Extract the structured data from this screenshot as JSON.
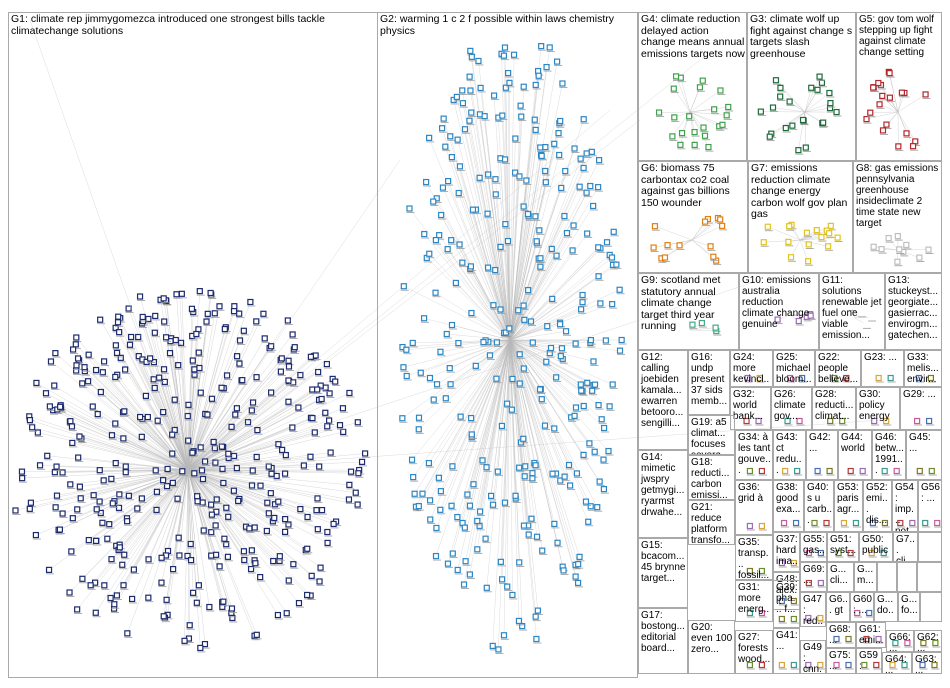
{
  "colors": {
    "G1": "#1c2a6e",
    "G2": "#2a86c4",
    "G3": "#1d6b3a",
    "G4": "#3ea24a",
    "G5": "#b3262d",
    "G6": "#e07f14",
    "G7": "#e2c41e",
    "G8": "#bfbfbf",
    "G9": "#44aa88",
    "G10": "#9b6bb3",
    "edge": "#b8b8b8",
    "border": "#a9a9a9"
  },
  "groups": [
    {
      "id": "G1",
      "label": "G1: climate rep jimmygomezca introduced one strongest bills tackle climatechange solutions"
    },
    {
      "id": "G2",
      "label": "G2: warming 1 c 2 f possible within laws chemistry physics"
    },
    {
      "id": "G4",
      "label": "G4: climate reduction delayed action change means annual emissions targets now"
    },
    {
      "id": "G3",
      "label": "G3: climate wolf up fight against change s targets slash greenhouse"
    },
    {
      "id": "G5",
      "label": "G5: gov tom wolf stepping up fight against climate change setting"
    },
    {
      "id": "G6",
      "label": "G6: biomass 75 carbontax co2 coal against gas billions 150 wounder"
    },
    {
      "id": "G7",
      "label": "G7: emissions reduction climate change energy carbon wolf gov plan gas"
    },
    {
      "id": "G8",
      "label": "G8: gas emissions pennsylvania greenhouse insideclimate 2 time state new target"
    },
    {
      "id": "G9",
      "label": "G9: scotland met statutory annual climate change target third year running"
    },
    {
      "id": "G10",
      "label": "G10: emissions australia reduction climate change genuine"
    },
    {
      "id": "G11",
      "label": "G11: solutions renewable jet fuel one viable emission..."
    },
    {
      "id": "G13",
      "label": "G13: stuckeyst... georgiate... gasierrac... envirogm... gatechen..."
    },
    {
      "id": "G12",
      "label": "G12: calling joebiden kamala... ewarren betooro... sengilli..."
    },
    {
      "id": "G16",
      "label": "G16: undp present 37 sids memb..."
    },
    {
      "id": "G24",
      "label": "G24: more kevincl..."
    },
    {
      "id": "G25",
      "label": "G25: michael bloom..."
    },
    {
      "id": "G22",
      "label": "G22: people believe..."
    },
    {
      "id": "G23",
      "label": "G23: ..."
    },
    {
      "id": "G33",
      "label": "G33: melis... envir..."
    },
    {
      "id": "G32",
      "label": "G32: world bank..."
    },
    {
      "id": "G26",
      "label": "G26: climate gov..."
    },
    {
      "id": "G28",
      "label": "G28: reducti... climat..."
    },
    {
      "id": "G30",
      "label": "G30: policy energy"
    },
    {
      "id": "G29",
      "label": "G29: ..."
    },
    {
      "id": "G19",
      "label": "G19: a5 climat... focuses severa..."
    },
    {
      "id": "G14",
      "label": "G14: mimetic jwspry getmygi... ryarmst drwahe..."
    },
    {
      "id": "G34",
      "label": "G34: à les tant gouve..."
    },
    {
      "id": "G43",
      "label": "G43: ct redu..."
    },
    {
      "id": "G42",
      "label": "G42: ..."
    },
    {
      "id": "G44",
      "label": "G44: world"
    },
    {
      "id": "G46",
      "label": "G46: betw... 1991..."
    },
    {
      "id": "G45",
      "label": "G45: ..."
    },
    {
      "id": "G18",
      "label": "G18: reducti... carbon emissi..."
    },
    {
      "id": "G36",
      "label": "G36: grid à"
    },
    {
      "id": "G38",
      "label": "G38: good exa..."
    },
    {
      "id": "G40",
      "label": "G40: s u carb..."
    },
    {
      "id": "G53",
      "label": "G53: paris agr..."
    },
    {
      "id": "G52",
      "label": "G52: emi... dis..."
    },
    {
      "id": "G54",
      "label": "G54: imp... not..."
    },
    {
      "id": "G56",
      "label": "G56: ..."
    },
    {
      "id": "G15",
      "label": "G15: bcacom... 45 brynne target..."
    },
    {
      "id": "G35",
      "label": "G35: transp... fossil..."
    },
    {
      "id": "G37",
      "label": "G37: hard ima..."
    },
    {
      "id": "G55",
      "label": "G55: gas..."
    },
    {
      "id": "G51",
      "label": "G51: syst..."
    },
    {
      "id": "G50",
      "label": "G50: public"
    },
    {
      "id": "G7b",
      "label": "G7... cli..."
    },
    {
      "id": "G21",
      "label": "G21: reduce platform transfo..."
    },
    {
      "id": "G48",
      "label": "G48: alex..."
    },
    {
      "id": "G69",
      "label": "G69: ..."
    },
    {
      "id": "G57",
      "label": "G... cli..."
    },
    {
      "id": "G58",
      "label": "G... m..."
    },
    {
      "id": "G31",
      "label": "G31: more energ..."
    },
    {
      "id": "G39",
      "label": "G39: pha... f..."
    },
    {
      "id": "G47",
      "label": "G47: red..."
    },
    {
      "id": "G6x",
      "label": "G6... gt"
    },
    {
      "id": "G60",
      "label": "G60: ..."
    },
    {
      "id": "G59x",
      "label": "G... do..."
    },
    {
      "id": "G62x",
      "label": "G... fo..."
    },
    {
      "id": "G17",
      "label": "G17: bostong... editorial board..."
    },
    {
      "id": "G20",
      "label": "G20: even 100 zero..."
    },
    {
      "id": "G27",
      "label": "G27: forests wood..."
    },
    {
      "id": "G41",
      "label": "G41: ..."
    },
    {
      "id": "G68",
      "label": "G68: ..."
    },
    {
      "id": "G61",
      "label": "G61: emi..."
    },
    {
      "id": "G66",
      "label": "G66: ..."
    },
    {
      "id": "G62",
      "label": "G62: ..."
    },
    {
      "id": "G49",
      "label": "G49: cnn..."
    },
    {
      "id": "G75",
      "label": "G75: ..."
    },
    {
      "id": "G59",
      "label": "G59: ne..."
    },
    {
      "id": "G64",
      "label": "G64: ..."
    },
    {
      "id": "G63",
      "label": "G63: ..."
    }
  ]
}
